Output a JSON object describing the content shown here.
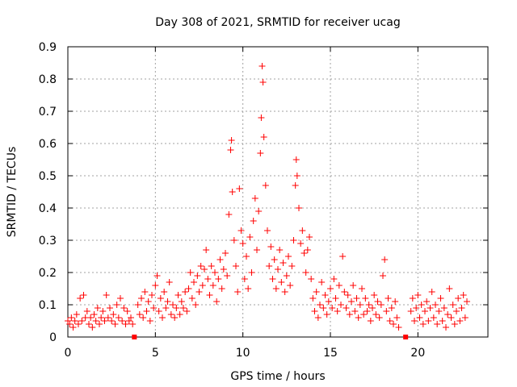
{
  "chart_data": {
    "type": "scatter",
    "title": "Day 308 of 2021, SRMTID for receiver ucag",
    "xlabel": "GPS time / hours",
    "ylabel": "SRMTID / TECUs",
    "xlim": [
      0,
      24
    ],
    "ylim": [
      0,
      0.9
    ],
    "xticks": [
      "0",
      "5",
      "10",
      "15",
      "20"
    ],
    "yticks": [
      "0",
      "0.1",
      "0.2",
      "0.3",
      "0.4",
      "0.5",
      "0.6",
      "0.7",
      "0.8",
      "0.9"
    ],
    "grid": true,
    "marker": "+",
    "color": "#ff0000",
    "data_gaps_x": [
      3.8,
      19.3
    ],
    "series": [
      {
        "name": "SRMTID",
        "points": [
          [
            0.0,
            0.05
          ],
          [
            0.1,
            0.04
          ],
          [
            0.2,
            0.06
          ],
          [
            0.3,
            0.03
          ],
          [
            0.4,
            0.05
          ],
          [
            0.5,
            0.07
          ],
          [
            0.6,
            0.04
          ],
          [
            0.7,
            0.12
          ],
          [
            0.8,
            0.05
          ],
          [
            0.9,
            0.13
          ],
          [
            1.0,
            0.06
          ],
          [
            1.1,
            0.08
          ],
          [
            1.2,
            0.04
          ],
          [
            1.3,
            0.06
          ],
          [
            1.4,
            0.03
          ],
          [
            1.5,
            0.07
          ],
          [
            1.6,
            0.05
          ],
          [
            1.7,
            0.09
          ],
          [
            1.8,
            0.04
          ],
          [
            1.9,
            0.06
          ],
          [
            2.0,
            0.08
          ],
          [
            2.1,
            0.05
          ],
          [
            2.2,
            0.13
          ],
          [
            2.3,
            0.06
          ],
          [
            2.4,
            0.09
          ],
          [
            2.5,
            0.05
          ],
          [
            2.6,
            0.07
          ],
          [
            2.7,
            0.04
          ],
          [
            2.8,
            0.1
          ],
          [
            2.9,
            0.06
          ],
          [
            3.0,
            0.12
          ],
          [
            3.1,
            0.05
          ],
          [
            3.2,
            0.09
          ],
          [
            3.3,
            0.04
          ],
          [
            3.4,
            0.08
          ],
          [
            3.5,
            0.05
          ],
          [
            3.6,
            0.06
          ],
          [
            3.7,
            0.04
          ],
          [
            4.0,
            0.1
          ],
          [
            4.1,
            0.07
          ],
          [
            4.2,
            0.12
          ],
          [
            4.3,
            0.06
          ],
          [
            4.4,
            0.14
          ],
          [
            4.5,
            0.08
          ],
          [
            4.6,
            0.11
          ],
          [
            4.7,
            0.05
          ],
          [
            4.8,
            0.13
          ],
          [
            4.9,
            0.09
          ],
          [
            5.0,
            0.16
          ],
          [
            5.1,
            0.19
          ],
          [
            5.2,
            0.08
          ],
          [
            5.3,
            0.12
          ],
          [
            5.4,
            0.06
          ],
          [
            5.5,
            0.14
          ],
          [
            5.6,
            0.09
          ],
          [
            5.7,
            0.11
          ],
          [
            5.8,
            0.17
          ],
          [
            5.9,
            0.07
          ],
          [
            6.0,
            0.1
          ],
          [
            6.1,
            0.06
          ],
          [
            6.2,
            0.09
          ],
          [
            6.3,
            0.13
          ],
          [
            6.4,
            0.07
          ],
          [
            6.5,
            0.11
          ],
          [
            6.6,
            0.09
          ],
          [
            6.7,
            0.14
          ],
          [
            6.8,
            0.08
          ],
          [
            6.9,
            0.15
          ],
          [
            7.0,
            0.2
          ],
          [
            7.1,
            0.12
          ],
          [
            7.2,
            0.17
          ],
          [
            7.3,
            0.1
          ],
          [
            7.4,
            0.19
          ],
          [
            7.5,
            0.14
          ],
          [
            7.6,
            0.22
          ],
          [
            7.7,
            0.16
          ],
          [
            7.8,
            0.21
          ],
          [
            7.9,
            0.27
          ],
          [
            8.0,
            0.18
          ],
          [
            8.1,
            0.13
          ],
          [
            8.2,
            0.22
          ],
          [
            8.3,
            0.16
          ],
          [
            8.4,
            0.2
          ],
          [
            8.5,
            0.11
          ],
          [
            8.6,
            0.18
          ],
          [
            8.7,
            0.24
          ],
          [
            8.8,
            0.15
          ],
          [
            8.9,
            0.21
          ],
          [
            9.0,
            0.26
          ],
          [
            9.1,
            0.19
          ],
          [
            9.2,
            0.38
          ],
          [
            9.3,
            0.58
          ],
          [
            9.35,
            0.61
          ],
          [
            9.4,
            0.45
          ],
          [
            9.5,
            0.3
          ],
          [
            9.6,
            0.22
          ],
          [
            9.7,
            0.14
          ],
          [
            9.8,
            0.46
          ],
          [
            9.9,
            0.33
          ],
          [
            10.0,
            0.29
          ],
          [
            10.1,
            0.18
          ],
          [
            10.2,
            0.25
          ],
          [
            10.3,
            0.15
          ],
          [
            10.4,
            0.31
          ],
          [
            10.5,
            0.2
          ],
          [
            10.6,
            0.36
          ],
          [
            10.7,
            0.43
          ],
          [
            10.8,
            0.27
          ],
          [
            10.9,
            0.39
          ],
          [
            11.0,
            0.57
          ],
          [
            11.05,
            0.68
          ],
          [
            11.1,
            0.84
          ],
          [
            11.15,
            0.79
          ],
          [
            11.2,
            0.62
          ],
          [
            11.3,
            0.47
          ],
          [
            11.4,
            0.33
          ],
          [
            11.5,
            0.22
          ],
          [
            11.6,
            0.28
          ],
          [
            11.7,
            0.18
          ],
          [
            11.8,
            0.24
          ],
          [
            11.9,
            0.15
          ],
          [
            12.0,
            0.21
          ],
          [
            12.1,
            0.27
          ],
          [
            12.2,
            0.17
          ],
          [
            12.3,
            0.23
          ],
          [
            12.4,
            0.14
          ],
          [
            12.5,
            0.19
          ],
          [
            12.6,
            0.25
          ],
          [
            12.7,
            0.16
          ],
          [
            12.8,
            0.22
          ],
          [
            12.9,
            0.3
          ],
          [
            13.0,
            0.47
          ],
          [
            13.05,
            0.55
          ],
          [
            13.1,
            0.5
          ],
          [
            13.2,
            0.4
          ],
          [
            13.3,
            0.29
          ],
          [
            13.4,
            0.33
          ],
          [
            13.5,
            0.26
          ],
          [
            13.6,
            0.2
          ],
          [
            13.7,
            0.27
          ],
          [
            13.8,
            0.31
          ],
          [
            13.9,
            0.18
          ],
          [
            14.0,
            0.12
          ],
          [
            14.1,
            0.08
          ],
          [
            14.2,
            0.14
          ],
          [
            14.3,
            0.06
          ],
          [
            14.4,
            0.1
          ],
          [
            14.5,
            0.17
          ],
          [
            14.6,
            0.09
          ],
          [
            14.7,
            0.13
          ],
          [
            14.8,
            0.07
          ],
          [
            14.9,
            0.11
          ],
          [
            15.0,
            0.15
          ],
          [
            15.1,
            0.09
          ],
          [
            15.2,
            0.18
          ],
          [
            15.3,
            0.12
          ],
          [
            15.4,
            0.08
          ],
          [
            15.5,
            0.16
          ],
          [
            15.6,
            0.1
          ],
          [
            15.7,
            0.25
          ],
          [
            15.8,
            0.14
          ],
          [
            15.9,
            0.09
          ],
          [
            16.0,
            0.13
          ],
          [
            16.1,
            0.07
          ],
          [
            16.2,
            0.11
          ],
          [
            16.3,
            0.16
          ],
          [
            16.4,
            0.08
          ],
          [
            16.5,
            0.12
          ],
          [
            16.6,
            0.06
          ],
          [
            16.7,
            0.1
          ],
          [
            16.8,
            0.15
          ],
          [
            16.9,
            0.07
          ],
          [
            17.0,
            0.12
          ],
          [
            17.1,
            0.08
          ],
          [
            17.2,
            0.1
          ],
          [
            17.3,
            0.05
          ],
          [
            17.4,
            0.09
          ],
          [
            17.5,
            0.13
          ],
          [
            17.6,
            0.07
          ],
          [
            17.7,
            0.11
          ],
          [
            17.8,
            0.06
          ],
          [
            17.9,
            0.1
          ],
          [
            18.0,
            0.19
          ],
          [
            18.1,
            0.24
          ],
          [
            18.2,
            0.08
          ],
          [
            18.3,
            0.12
          ],
          [
            18.4,
            0.05
          ],
          [
            18.5,
            0.09
          ],
          [
            18.6,
            0.04
          ],
          [
            18.7,
            0.11
          ],
          [
            18.8,
            0.06
          ],
          [
            18.9,
            0.03
          ],
          [
            19.6,
            0.08
          ],
          [
            19.7,
            0.12
          ],
          [
            19.8,
            0.05
          ],
          [
            19.9,
            0.09
          ],
          [
            20.0,
            0.13
          ],
          [
            20.1,
            0.06
          ],
          [
            20.2,
            0.1
          ],
          [
            20.3,
            0.04
          ],
          [
            20.4,
            0.08
          ],
          [
            20.5,
            0.11
          ],
          [
            20.6,
            0.05
          ],
          [
            20.7,
            0.09
          ],
          [
            20.8,
            0.14
          ],
          [
            20.9,
            0.06
          ],
          [
            21.0,
            0.1
          ],
          [
            21.1,
            0.04
          ],
          [
            21.2,
            0.08
          ],
          [
            21.3,
            0.12
          ],
          [
            21.4,
            0.05
          ],
          [
            21.5,
            0.09
          ],
          [
            21.6,
            0.03
          ],
          [
            21.7,
            0.07
          ],
          [
            21.8,
            0.15
          ],
          [
            21.9,
            0.06
          ],
          [
            22.0,
            0.1
          ],
          [
            22.1,
            0.04
          ],
          [
            22.2,
            0.08
          ],
          [
            22.3,
            0.12
          ],
          [
            22.4,
            0.05
          ],
          [
            22.5,
            0.09
          ],
          [
            22.6,
            0.13
          ],
          [
            22.7,
            0.06
          ],
          [
            22.8,
            0.11
          ]
        ]
      }
    ]
  }
}
